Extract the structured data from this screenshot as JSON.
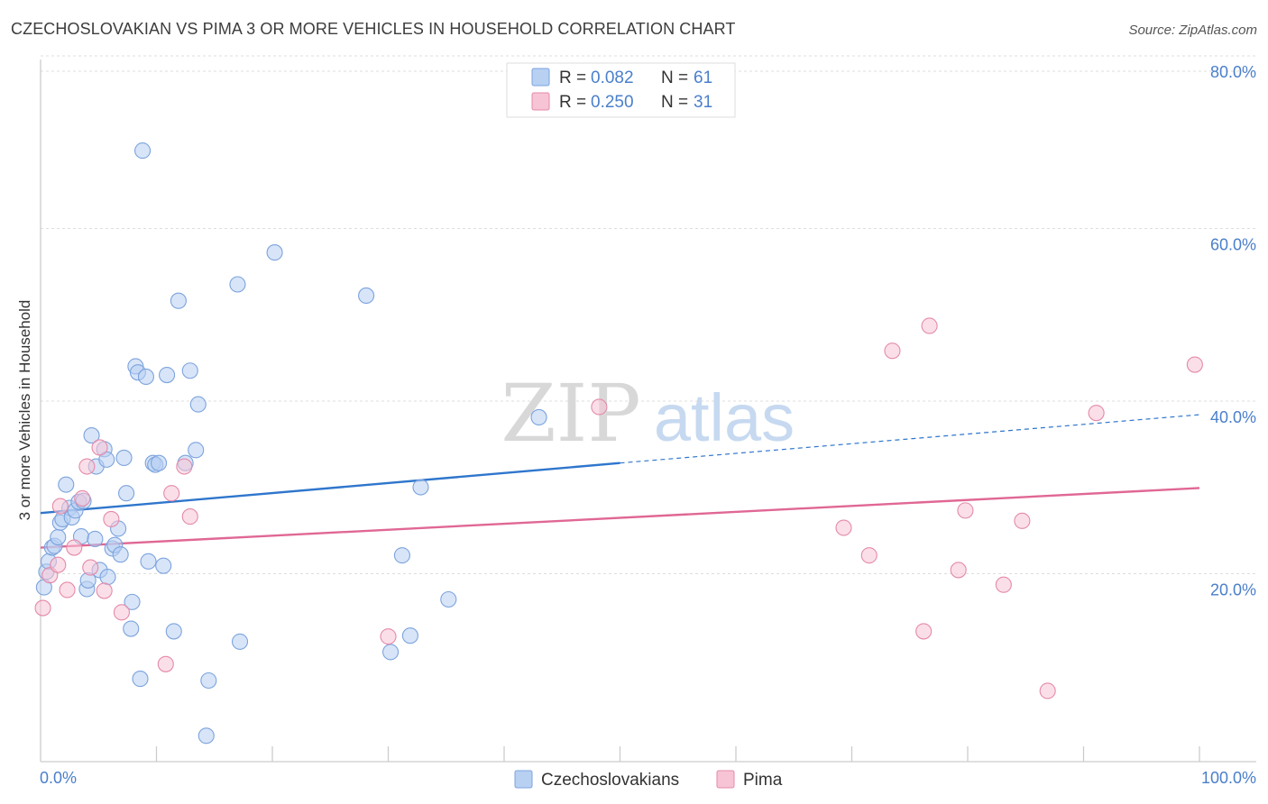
{
  "title": "CZECHOSLOVAKIAN VS PIMA 3 OR MORE VEHICLES IN HOUSEHOLD CORRELATION CHART",
  "source": "Source: ZipAtlas.com",
  "watermark": {
    "zip": "ZIP",
    "atlas": "atlas"
  },
  "colors": {
    "blue_fill": "#b8d0f2",
    "blue_stroke": "#7ca3dd",
    "blue_line": "#2f76cc",
    "pink_fill": "#f7c4d6",
    "pink_stroke": "#e48aa9",
    "pink_line": "#e06794",
    "tick_text": "#4a7fcb",
    "grid": "#dddddd"
  },
  "legend": {
    "items": [
      {
        "r_label": "R =",
        "r_value": "0.082",
        "n_label": "N =",
        "n_value": "61"
      },
      {
        "r_label": "R =",
        "r_value": "0.250",
        "n_label": "N =",
        "n_value": "31"
      }
    ]
  },
  "bottom_legend": [
    "Czechoslovakians",
    "Pima"
  ],
  "chart_data": {
    "type": "scatter",
    "title": "CZECHOSLOVAKIAN VS PIMA 3 OR MORE VEHICLES IN HOUSEHOLD CORRELATION CHART",
    "xlabel": "",
    "ylabel": "3 or more Vehicles in Household",
    "xlim": [
      0,
      100
    ],
    "ylim": [
      0,
      80
    ],
    "x_ticks": [
      "0.0%",
      "100.0%"
    ],
    "y_ticks": [
      {
        "value": 80,
        "label": "80.0%"
      },
      {
        "value": 60,
        "label": "60.0%"
      },
      {
        "value": 40,
        "label": "40.0%"
      },
      {
        "value": 20,
        "label": "20.0%"
      }
    ],
    "grid": "horizontal dashed",
    "legend_position": "top-center",
    "series": [
      {
        "name": "Czechoslovakians",
        "color": "#b8d0f2",
        "r": 0.082,
        "n": 61,
        "trend": {
          "x": [
            0,
            50,
            100
          ],
          "y": [
            28.8,
            34.6,
            40.2
          ],
          "solid_to_x": 50
        },
        "points": [
          [
            0.3,
            20.2
          ],
          [
            0.5,
            22.0
          ],
          [
            0.7,
            23.2
          ],
          [
            1.0,
            24.8
          ],
          [
            1.2,
            25.0
          ],
          [
            1.5,
            26.0
          ],
          [
            1.7,
            27.7
          ],
          [
            1.9,
            28.1
          ],
          [
            2.2,
            32.1
          ],
          [
            2.5,
            29.4
          ],
          [
            2.7,
            28.3
          ],
          [
            3.0,
            29.1
          ],
          [
            3.3,
            30.1
          ],
          [
            3.5,
            26.1
          ],
          [
            3.7,
            30.2
          ],
          [
            4.0,
            20.0
          ],
          [
            4.1,
            21.0
          ],
          [
            4.4,
            37.8
          ],
          [
            4.7,
            25.8
          ],
          [
            4.8,
            34.2
          ],
          [
            5.1,
            22.2
          ],
          [
            5.5,
            36.2
          ],
          [
            5.7,
            35.0
          ],
          [
            5.8,
            21.4
          ],
          [
            6.2,
            24.7
          ],
          [
            6.4,
            25.1
          ],
          [
            6.7,
            27.0
          ],
          [
            6.9,
            24.0
          ],
          [
            7.2,
            35.2
          ],
          [
            7.4,
            31.1
          ],
          [
            7.8,
            15.4
          ],
          [
            7.9,
            18.5
          ],
          [
            8.2,
            45.8
          ],
          [
            8.4,
            45.1
          ],
          [
            8.6,
            9.6
          ],
          [
            8.8,
            70.8
          ],
          [
            9.1,
            44.6
          ],
          [
            9.3,
            23.2
          ],
          [
            9.7,
            34.6
          ],
          [
            9.9,
            34.4
          ],
          [
            10.2,
            34.6
          ],
          [
            10.6,
            22.7
          ],
          [
            10.9,
            44.8
          ],
          [
            11.5,
            15.1
          ],
          [
            11.9,
            53.4
          ],
          [
            12.5,
            34.6
          ],
          [
            12.9,
            45.3
          ],
          [
            13.4,
            36.1
          ],
          [
            13.6,
            41.4
          ],
          [
            14.3,
            3.0
          ],
          [
            14.5,
            9.4
          ],
          [
            17.0,
            55.3
          ],
          [
            17.2,
            13.9
          ],
          [
            20.2,
            59.0
          ],
          [
            28.1,
            54.0
          ],
          [
            30.2,
            12.7
          ],
          [
            31.2,
            23.9
          ],
          [
            31.9,
            14.6
          ],
          [
            32.8,
            31.8
          ],
          [
            35.2,
            18.8
          ],
          [
            43.0,
            39.9
          ]
        ]
      },
      {
        "name": "Pima",
        "color": "#f7c4d6",
        "r": 0.25,
        "n": 31,
        "trend": {
          "x": [
            0,
            100
          ],
          "y": [
            24.8,
            31.7
          ]
        },
        "points": [
          [
            0.2,
            17.8
          ],
          [
            0.8,
            21.6
          ],
          [
            1.5,
            22.8
          ],
          [
            1.7,
            29.6
          ],
          [
            2.3,
            19.9
          ],
          [
            2.9,
            24.8
          ],
          [
            3.6,
            30.5
          ],
          [
            4.0,
            34.2
          ],
          [
            4.3,
            22.5
          ],
          [
            5.1,
            36.4
          ],
          [
            5.5,
            19.8
          ],
          [
            6.1,
            28.1
          ],
          [
            7.0,
            17.3
          ],
          [
            10.8,
            11.3
          ],
          [
            11.3,
            31.1
          ],
          [
            12.4,
            34.2
          ],
          [
            12.9,
            28.4
          ],
          [
            30.0,
            14.5
          ],
          [
            48.2,
            41.1
          ],
          [
            69.3,
            27.1
          ],
          [
            71.5,
            23.9
          ],
          [
            73.5,
            47.6
          ],
          [
            76.2,
            15.1
          ],
          [
            76.7,
            50.5
          ],
          [
            79.2,
            22.2
          ],
          [
            79.8,
            29.1
          ],
          [
            83.1,
            20.5
          ],
          [
            84.7,
            27.9
          ],
          [
            86.9,
            8.2
          ],
          [
            91.1,
            40.4
          ],
          [
            99.6,
            46.0
          ]
        ]
      }
    ]
  }
}
